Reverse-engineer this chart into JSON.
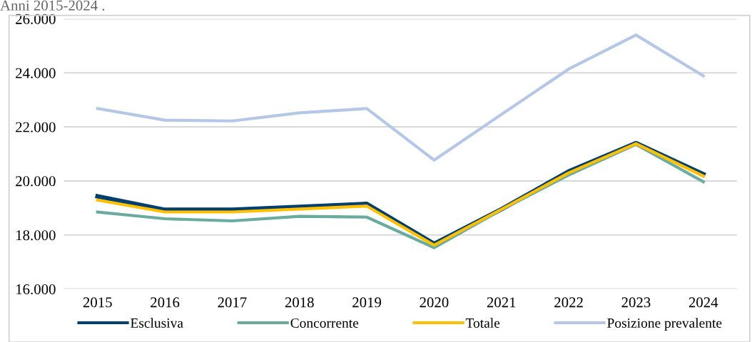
{
  "chart_data": {
    "type": "line",
    "title": "Anni 2015-2024 .",
    "categories": [
      "2015",
      "2016",
      "2017",
      "2018",
      "2019",
      "2020",
      "2021",
      "2022",
      "2023",
      "2024"
    ],
    "series": [
      {
        "name": "Esclusiva",
        "color": "#003f6e",
        "values": [
          19430,
          18930,
          18930,
          19040,
          19150,
          17670,
          18950,
          20350,
          21400,
          20250
        ]
      },
      {
        "name": "Concorrente",
        "color": "#6aaba0",
        "values": [
          18850,
          18600,
          18520,
          18690,
          18660,
          17530,
          18930,
          20220,
          21350,
          19970
        ]
      },
      {
        "name": "Totale",
        "color": "#ffc000",
        "values": [
          19290,
          18850,
          18850,
          18960,
          19070,
          17620,
          18950,
          20300,
          21380,
          20180
        ]
      },
      {
        "name": "Posizione prevalente",
        "color": "#b4c7e7",
        "values": [
          22680,
          22250,
          22220,
          22520,
          22680,
          20770,
          22460,
          24140,
          25400,
          23890
        ]
      }
    ],
    "ylim": [
      16000,
      26000
    ],
    "yticks": [
      {
        "value": 16000,
        "label": "16.000"
      },
      {
        "value": 18000,
        "label": "18.000"
      },
      {
        "value": 20000,
        "label": "20.000"
      },
      {
        "value": 22000,
        "label": "22.000"
      },
      {
        "value": 24000,
        "label": "24.000"
      },
      {
        "value": 26000,
        "label": "26.000"
      }
    ],
    "grid": "y",
    "legend": "bottom",
    "marker": "none",
    "line_style": "solid"
  }
}
